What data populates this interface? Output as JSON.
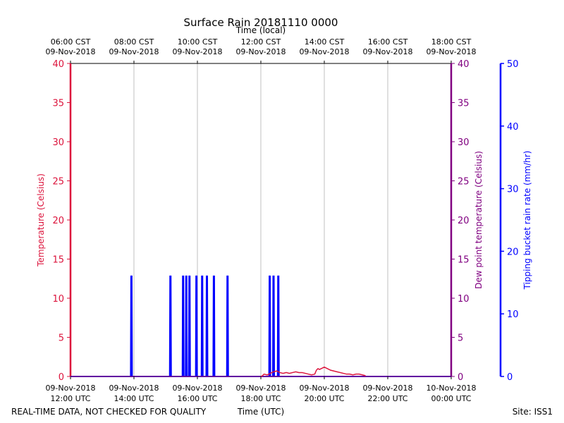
{
  "chart_data": {
    "type": "line",
    "title": "Surface Rain 20181110 0000",
    "top_axis_label": "Time (local)",
    "xlabel": "Time (UTC)",
    "ylabel_left": "Temperature (Celsius)",
    "ylabel_right_inner": "Dew point temperature (Celsius)",
    "ylabel_right_outer": "Tipping bucket rain rate (mm/hr)",
    "footer_left": "REAL-TIME DATA, NOT CHECKED FOR QUALITY",
    "footer_right": "Site: ISS1",
    "x_range_hours_utc": [
      12,
      24
    ],
    "ylim_temperature": [
      0,
      40
    ],
    "ylim_dewpoint": [
      0,
      40
    ],
    "ylim_rain": [
      0,
      50
    ],
    "grid": "vertical",
    "colors": {
      "temperature": "#dc143c",
      "dewpoint": "#800080",
      "rain": "#0000ff",
      "grid": "#b0b0b0",
      "frame": "#000000"
    },
    "bottom_ticks": [
      {
        "hour": 12,
        "line1": "09-Nov-2018",
        "line2": "12:00 UTC"
      },
      {
        "hour": 14,
        "line1": "09-Nov-2018",
        "line2": "14:00 UTC"
      },
      {
        "hour": 16,
        "line1": "09-Nov-2018",
        "line2": "16:00 UTC"
      },
      {
        "hour": 18,
        "line1": "09-Nov-2018",
        "line2": "18:00 UTC"
      },
      {
        "hour": 20,
        "line1": "09-Nov-2018",
        "line2": "20:00 UTC"
      },
      {
        "hour": 22,
        "line1": "09-Nov-2018",
        "line2": "22:00 UTC"
      },
      {
        "hour": 24,
        "line1": "10-Nov-2018",
        "line2": "00:00 UTC"
      }
    ],
    "top_ticks": [
      {
        "hour": 12,
        "line1": "06:00 CST",
        "line2": "09-Nov-2018"
      },
      {
        "hour": 14,
        "line1": "08:00 CST",
        "line2": "09-Nov-2018"
      },
      {
        "hour": 16,
        "line1": "10:00 CST",
        "line2": "09-Nov-2018"
      },
      {
        "hour": 18,
        "line1": "12:00 CST",
        "line2": "09-Nov-2018"
      },
      {
        "hour": 20,
        "line1": "14:00 CST",
        "line2": "09-Nov-2018"
      },
      {
        "hour": 22,
        "line1": "16:00 CST",
        "line2": "09-Nov-2018"
      },
      {
        "hour": 24,
        "line1": "18:00 CST",
        "line2": "09-Nov-2018"
      }
    ],
    "temperature_ticks": [
      0,
      5,
      10,
      15,
      20,
      25,
      30,
      35,
      40
    ],
    "dewpoint_ticks": [
      0,
      5,
      10,
      15,
      20,
      25,
      30,
      35,
      40
    ],
    "rain_ticks": [
      0,
      10,
      20,
      30,
      40,
      50
    ],
    "rain_rate_series": {
      "name": "Tipping bucket rain rate",
      "baseline": 0,
      "spike_value": 16,
      "spike_hours": [
        13.92,
        15.15,
        15.55,
        15.65,
        15.75,
        15.97,
        16.15,
        16.3,
        16.52,
        16.95,
        18.28,
        18.4,
        18.55
      ]
    },
    "temperature_series": {
      "name": "Temperature",
      "x": [
        18.0,
        18.05,
        18.1,
        18.2,
        18.3,
        18.4,
        18.5,
        18.6,
        18.7,
        18.8,
        18.9,
        19.0,
        19.1,
        19.2,
        19.3,
        19.4,
        19.5,
        19.6,
        19.7,
        19.75,
        19.8,
        19.85,
        19.9,
        20.0,
        20.1,
        20.2,
        20.3,
        20.4,
        20.5,
        20.6,
        20.7,
        20.8,
        20.9,
        21.0,
        21.1,
        21.2,
        21.3
      ],
      "y": [
        0.0,
        0.1,
        0.3,
        0.2,
        0.4,
        0.6,
        0.7,
        0.5,
        0.4,
        0.5,
        0.4,
        0.5,
        0.6,
        0.5,
        0.5,
        0.4,
        0.3,
        0.2,
        0.3,
        0.8,
        1.0,
        0.9,
        1.0,
        1.2,
        1.0,
        0.8,
        0.7,
        0.6,
        0.5,
        0.4,
        0.3,
        0.3,
        0.2,
        0.3,
        0.3,
        0.2,
        0.1
      ]
    },
    "dewpoint_series": {
      "name": "Dew point temperature",
      "x": [
        12,
        24
      ],
      "y": [
        0,
        0
      ]
    }
  }
}
